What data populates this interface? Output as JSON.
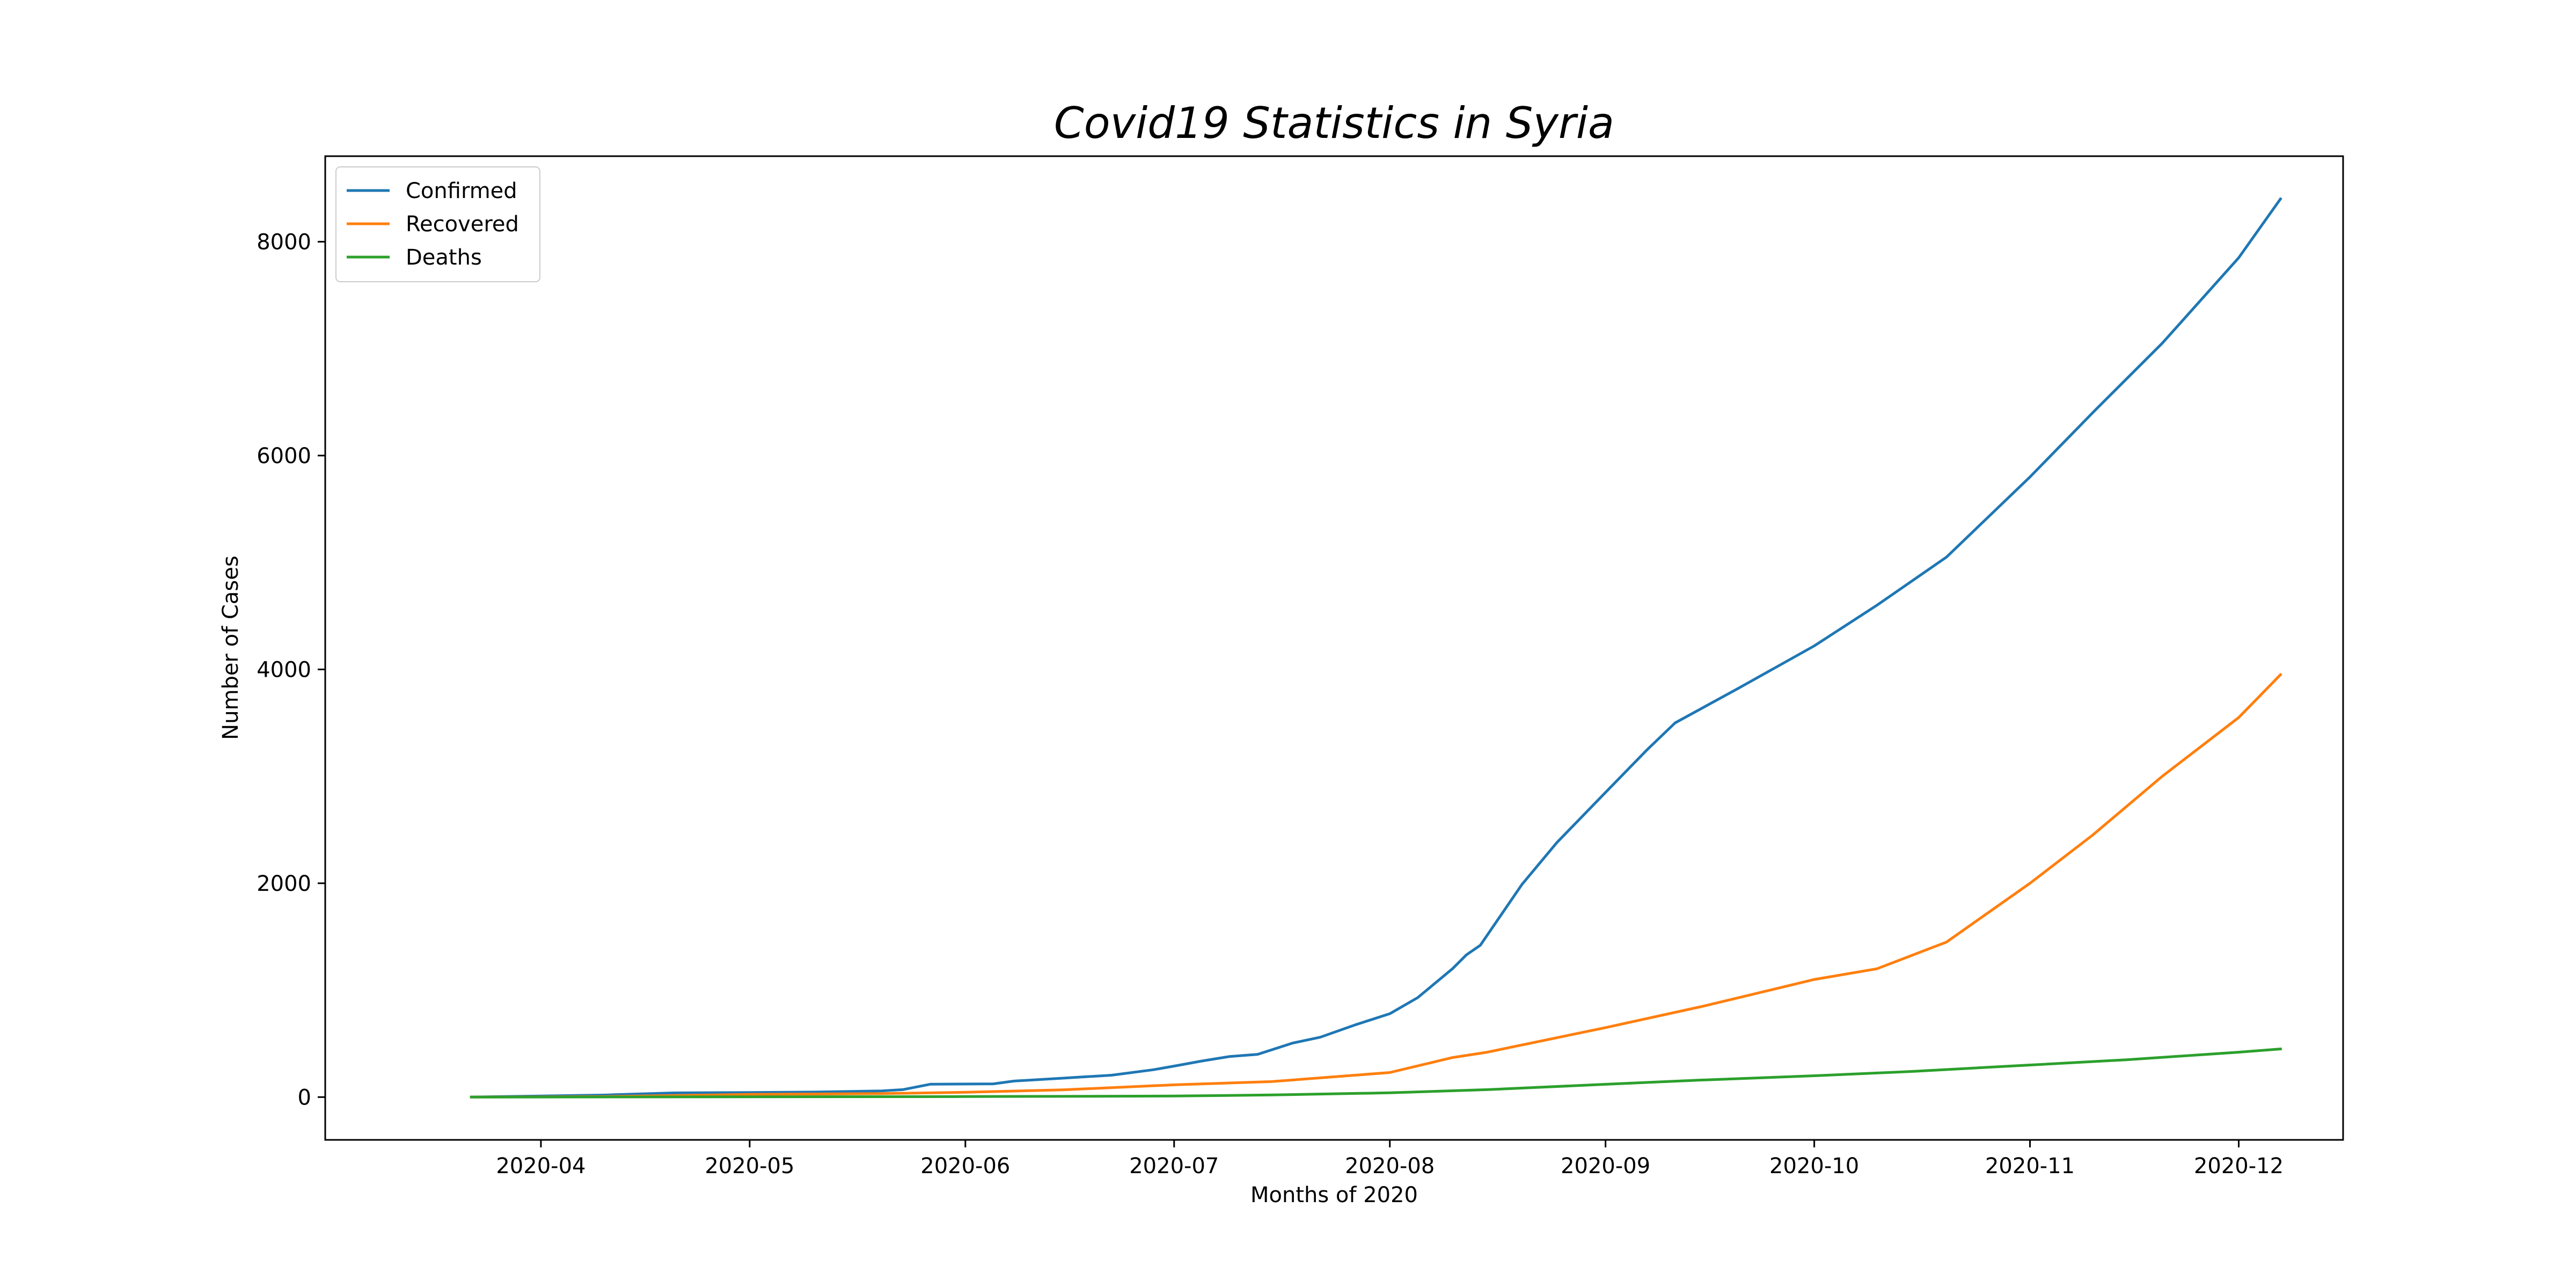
{
  "chart_data": {
    "type": "line",
    "title": "Covid19 Statistics in Syria",
    "xlabel": "Months of 2020",
    "ylabel": "Number of Cases",
    "x_axis": {
      "type": "date",
      "range": [
        "2020-03-01",
        "2020-12-16"
      ],
      "ticks": [
        "2020-04-01",
        "2020-05-01",
        "2020-06-01",
        "2020-07-01",
        "2020-08-01",
        "2020-09-01",
        "2020-10-01",
        "2020-11-01",
        "2020-12-01"
      ],
      "tick_labels": [
        "2020-04",
        "2020-05",
        "2020-06",
        "2020-07",
        "2020-08",
        "2020-09",
        "2020-10",
        "2020-11",
        "2020-12"
      ]
    },
    "y_axis": {
      "range": [
        -400,
        8800
      ],
      "ticks": [
        0,
        2000,
        4000,
        6000,
        8000
      ],
      "tick_labels": [
        "0",
        "2000",
        "4000",
        "6000",
        "8000"
      ]
    },
    "grid": false,
    "legend": {
      "placement": "top-left"
    },
    "series": [
      {
        "name": "Confirmed",
        "color": "#1f77b4",
        "points": [
          [
            "2020-03-22",
            1
          ],
          [
            "2020-04-01",
            10
          ],
          [
            "2020-04-10",
            19
          ],
          [
            "2020-04-20",
            39
          ],
          [
            "2020-05-01",
            43
          ],
          [
            "2020-05-10",
            47
          ],
          [
            "2020-05-20",
            58
          ],
          [
            "2020-05-23",
            70
          ],
          [
            "2020-05-27",
            121
          ],
          [
            "2020-06-05",
            124
          ],
          [
            "2020-06-08",
            150
          ],
          [
            "2020-06-15",
            177
          ],
          [
            "2020-06-22",
            205
          ],
          [
            "2020-06-28",
            256
          ],
          [
            "2020-07-01",
            290
          ],
          [
            "2020-07-05",
            338
          ],
          [
            "2020-07-09",
            380
          ],
          [
            "2020-07-13",
            400
          ],
          [
            "2020-07-18",
            505
          ],
          [
            "2020-07-22",
            560
          ],
          [
            "2020-07-27",
            675
          ],
          [
            "2020-08-01",
            780
          ],
          [
            "2020-08-05",
            930
          ],
          [
            "2020-08-10",
            1200
          ],
          [
            "2020-08-12",
            1330
          ],
          [
            "2020-08-14",
            1420
          ],
          [
            "2020-08-20",
            1990
          ],
          [
            "2020-08-25",
            2380
          ],
          [
            "2020-09-01",
            2850
          ],
          [
            "2020-09-07",
            3250
          ],
          [
            "2020-09-11",
            3500
          ],
          [
            "2020-09-20",
            3820
          ],
          [
            "2020-10-01",
            4220
          ],
          [
            "2020-10-10",
            4600
          ],
          [
            "2020-10-20",
            5050
          ],
          [
            "2020-11-01",
            5800
          ],
          [
            "2020-11-10",
            6400
          ],
          [
            "2020-11-20",
            7050
          ],
          [
            "2020-12-01",
            7850
          ],
          [
            "2020-12-07",
            8400
          ]
        ]
      },
      {
        "name": "Recovered",
        "color": "#ff7f0e",
        "points": [
          [
            "2020-03-22",
            0
          ],
          [
            "2020-04-10",
            5
          ],
          [
            "2020-05-01",
            25
          ],
          [
            "2020-05-20",
            33
          ],
          [
            "2020-06-01",
            45
          ],
          [
            "2020-06-15",
            68
          ],
          [
            "2020-07-01",
            115
          ],
          [
            "2020-07-15",
            145
          ],
          [
            "2020-08-01",
            230
          ],
          [
            "2020-08-10",
            370
          ],
          [
            "2020-08-15",
            420
          ],
          [
            "2020-09-01",
            650
          ],
          [
            "2020-09-15",
            850
          ],
          [
            "2020-10-01",
            1100
          ],
          [
            "2020-10-10",
            1200
          ],
          [
            "2020-10-20",
            1450
          ],
          [
            "2020-11-01",
            2000
          ],
          [
            "2020-11-10",
            2450
          ],
          [
            "2020-11-20",
            3000
          ],
          [
            "2020-12-01",
            3550
          ],
          [
            "2020-12-07",
            3950
          ]
        ]
      },
      {
        "name": "Deaths",
        "color": "#2ca02c",
        "points": [
          [
            "2020-03-22",
            0
          ],
          [
            "2020-05-01",
            3
          ],
          [
            "2020-06-01",
            5
          ],
          [
            "2020-07-01",
            10
          ],
          [
            "2020-07-15",
            20
          ],
          [
            "2020-08-01",
            40
          ],
          [
            "2020-08-15",
            70
          ],
          [
            "2020-09-01",
            120
          ],
          [
            "2020-09-15",
            160
          ],
          [
            "2020-10-01",
            200
          ],
          [
            "2020-10-15",
            240
          ],
          [
            "2020-11-01",
            300
          ],
          [
            "2020-11-15",
            350
          ],
          [
            "2020-12-01",
            420
          ],
          [
            "2020-12-07",
            450
          ]
        ]
      }
    ]
  }
}
